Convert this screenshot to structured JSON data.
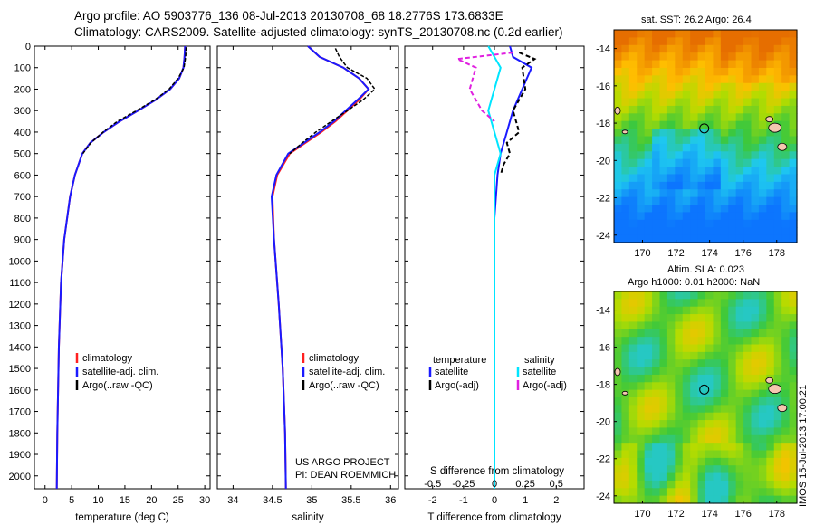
{
  "header": {
    "title_line1": "Argo profile: AO 5903776_136 08-Jul-2013 20130708_68 18.2776S 173.6833E",
    "title_line2": "Climatology: CARS2009. Satellite-adjusted climatology: synTS_20130708.nc (0.2d earlier)"
  },
  "colors": {
    "climatology": "#ff2020",
    "satellite": "#1a1aff",
    "argo": "#000000",
    "salinity_sat": "#00e5ff",
    "salinity_argo": "#e020e0"
  },
  "chart_data": [
    {
      "type": "line",
      "id": "temperature",
      "xlabel": "temperature (deg C)",
      "ylabel": "",
      "xlim": [
        -2,
        31
      ],
      "ylim": [
        0,
        2060
      ],
      "xticks": [
        "0",
        "5",
        "10",
        "15",
        "20",
        "25",
        "30"
      ],
      "yticks": [
        "0",
        "100",
        "200",
        "300",
        "400",
        "500",
        "600",
        "700",
        "800",
        "900",
        "1000",
        "1100",
        "1200",
        "1300",
        "1400",
        "1500",
        "1600",
        "1700",
        "1800",
        "1900",
        "2000"
      ],
      "series": [
        {
          "name": "climatology",
          "x": [
            26.3,
            26.2,
            26.0,
            25.2,
            23.5,
            20.8,
            17.5,
            14.0,
            11.0,
            8.5,
            7.0,
            5.6,
            4.7,
            3.6,
            3.0,
            2.6,
            2.3,
            2.2
          ],
          "depth": [
            0,
            50,
            100,
            150,
            200,
            250,
            300,
            350,
            400,
            450,
            500,
            600,
            700,
            900,
            1100,
            1400,
            1800,
            2060
          ]
        },
        {
          "name": "satellite-adj. clim.",
          "x": [
            26.3,
            26.2,
            26.0,
            25.2,
            23.5,
            20.8,
            17.5,
            14.0,
            11.0,
            8.5,
            7.0,
            5.6,
            4.7,
            3.6,
            3.0,
            2.6,
            2.3,
            2.2
          ],
          "depth": [
            0,
            50,
            100,
            150,
            200,
            250,
            300,
            350,
            400,
            450,
            500,
            600,
            700,
            900,
            1100,
            1400,
            1800,
            2060
          ]
        },
        {
          "name": "Argo(..raw -QC)",
          "x": [
            26.5,
            26.4,
            26.1,
            25.0,
            23.3,
            20.6,
            17.2,
            13.6,
            10.9,
            8.6,
            7.1
          ],
          "depth": [
            5,
            50,
            100,
            150,
            200,
            250,
            300,
            350,
            400,
            450,
            500
          ]
        }
      ],
      "legend": [
        "climatology",
        "satellite-adj. clim.",
        "Argo(..raw -QC)"
      ]
    },
    {
      "type": "line",
      "id": "salinity",
      "xlabel": "salinity",
      "xlim": [
        33.8,
        36.1
      ],
      "ylim": [
        0,
        2060
      ],
      "xticks": [
        "34",
        "34.5",
        "35",
        "35.5",
        "36"
      ],
      "series": [
        {
          "name": "climatology",
          "x": [
            34.95,
            35.1,
            35.4,
            35.6,
            35.72,
            35.6,
            35.45,
            35.3,
            35.12,
            34.92,
            34.72,
            34.56,
            34.5,
            34.52,
            34.58,
            34.63,
            34.66,
            34.67
          ],
          "depth": [
            0,
            50,
            100,
            150,
            200,
            250,
            300,
            350,
            400,
            450,
            500,
            600,
            700,
            900,
            1200,
            1500,
            1800,
            2060
          ]
        },
        {
          "name": "satellite-adj. clim.",
          "x": [
            34.95,
            35.1,
            35.4,
            35.6,
            35.72,
            35.58,
            35.43,
            35.28,
            35.1,
            34.9,
            34.7,
            34.55,
            34.49,
            34.52,
            34.58,
            34.63,
            34.66,
            34.67
          ],
          "depth": [
            0,
            50,
            100,
            150,
            200,
            250,
            300,
            350,
            400,
            450,
            500,
            600,
            700,
            900,
            1200,
            1500,
            1800,
            2060
          ]
        },
        {
          "name": "Argo(..raw -QC)",
          "x": [
            35.3,
            35.35,
            35.45,
            35.7,
            35.8,
            35.65,
            35.45,
            35.25,
            35.05,
            34.88,
            34.72
          ],
          "depth": [
            10,
            50,
            100,
            150,
            200,
            250,
            300,
            350,
            400,
            450,
            500
          ]
        }
      ],
      "legend": [
        "climatology",
        "satellite-adj. clim.",
        "Argo(..raw -QC)"
      ],
      "annotation_line1": "US ARGO PROJECT",
      "annotation_line2": "PI: DEAN ROEMMICH"
    },
    {
      "type": "line",
      "id": "difference",
      "xlabel": "T difference from climatology",
      "xlabel_top": "S difference from climatology",
      "xlim": [
        -2.9,
        2.9
      ],
      "ylim": [
        0,
        2060
      ],
      "xticks": [
        "-2",
        "-1",
        "0",
        "1",
        "2"
      ],
      "xticks_top": [
        "-0.5",
        "-0.25",
        "0",
        "0.25",
        "0.5"
      ],
      "series": [
        {
          "name": "temperature satellite",
          "x": [
            0.5,
            0.6,
            1.2,
            0.9,
            0.6,
            0.4,
            0.2,
            0.1,
            0.05,
            0.0,
            0.0,
            0.0
          ],
          "depth": [
            0,
            50,
            100,
            200,
            300,
            400,
            500,
            600,
            700,
            800,
            1200,
            2060
          ]
        },
        {
          "name": "temperature Argo(-adj)",
          "x": [
            0.8,
            1.3,
            0.9,
            1.0,
            0.6,
            0.8,
            0.4,
            0.5,
            0.3,
            0.2
          ],
          "depth": [
            30,
            60,
            100,
            200,
            300,
            400,
            450,
            500,
            550,
            600
          ]
        },
        {
          "name": "salinity satellite",
          "x": [
            -0.05,
            0.0,
            0.05,
            0.0,
            -0.05,
            0.0,
            0.05,
            0.0,
            0.0,
            0.0
          ],
          "depth": [
            0,
            50,
            100,
            200,
            300,
            400,
            500,
            600,
            800,
            2060
          ]
        },
        {
          "name": "salinity Argo(-adj)",
          "x": [
            0.15,
            -0.3,
            -0.15,
            -0.2,
            -0.1,
            0.0
          ],
          "depth": [
            30,
            60,
            100,
            200,
            300,
            350
          ]
        }
      ],
      "legend_headers": [
        "temperature",
        "salinity"
      ],
      "legend": [
        "satellite",
        "Argo(-adj)",
        "satellite",
        "Argo(-adj)"
      ]
    },
    {
      "type": "heatmap",
      "id": "sst_map",
      "title": "sat. SST: 26.2 Argo: 26.4",
      "xticks": [
        "170",
        "172",
        "174",
        "176",
        "178"
      ],
      "yticks": [
        "-14",
        "-16",
        "-18",
        "-20",
        "-22",
        "-24"
      ],
      "argo_position": {
        "lon": 173.68,
        "lat": -18.28
      }
    },
    {
      "type": "heatmap",
      "id": "sla_map",
      "title_line1": "Altim. SLA: 0.023",
      "title_line2": "Argo h1000: 0.01 h2000: NaN",
      "xticks": [
        "170",
        "172",
        "174",
        "176",
        "178"
      ],
      "yticks": [
        "-14",
        "-16",
        "-18",
        "-20",
        "-22",
        "-24"
      ],
      "argo_position": {
        "lon": 173.68,
        "lat": -18.28
      }
    }
  ],
  "footer": {
    "stamp": "IMOS 15-Jul-2013 17:00:21"
  }
}
